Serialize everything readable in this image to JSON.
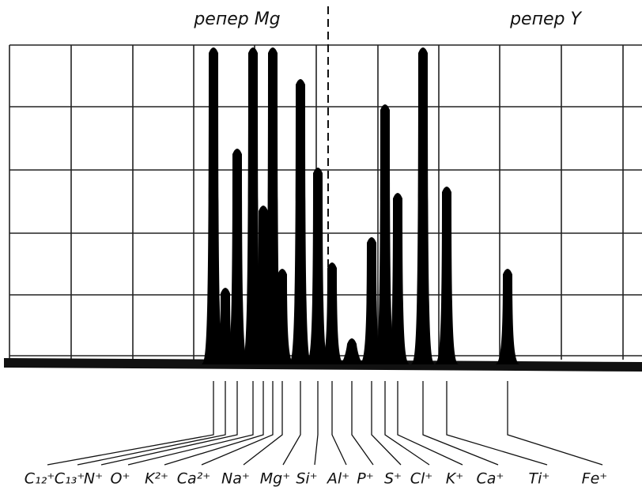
{
  "chart_data": {
    "type": "spectrum",
    "annotations": [
      "репер Mg",
      "репер Y"
    ],
    "categories": [
      "C₁₂⁺",
      "C₁₃⁺",
      "N⁺",
      "O⁺",
      "K²⁺",
      "Ca²⁺",
      "Na⁺",
      "Mg⁺",
      "Si⁺",
      "Al⁺",
      "P⁺",
      "S⁺",
      "Cl⁺",
      "K⁺",
      "Ca⁺",
      "Ti⁺",
      "Fe⁺"
    ],
    "values": [
      5,
      1.2,
      3.4,
      5,
      2.5,
      5,
      1.5,
      4.5,
      3.1,
      1.6,
      0.4,
      2,
      4.1,
      2.7,
      5,
      2.8,
      1.5
    ],
    "color": "#000000",
    "ylim": [
      0,
      5
    ]
  }
}
